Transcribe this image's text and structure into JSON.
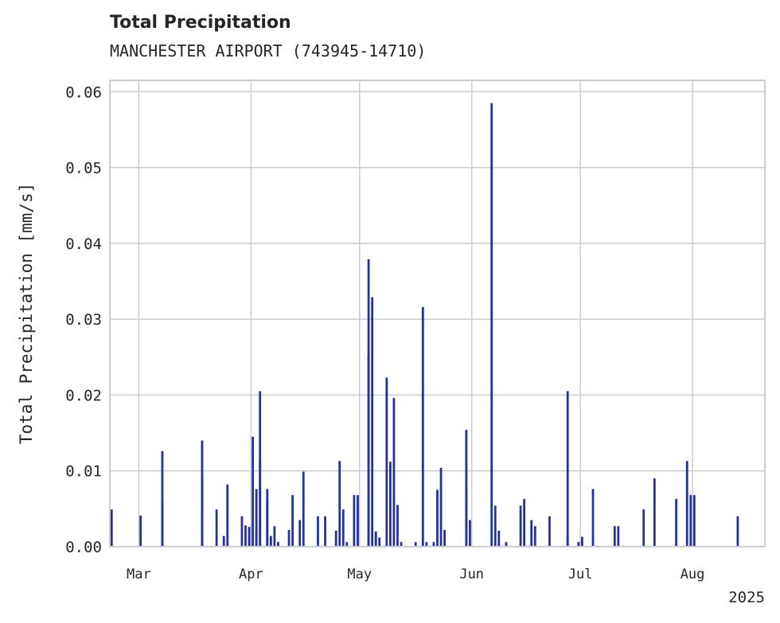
{
  "chart_data": {
    "type": "bar",
    "title": "Total Precipitation",
    "subtitle": "MANCHESTER AIRPORT (743945-14710)",
    "xlabel": "",
    "ylabel": "Total Precipitation [mm/s]",
    "x_axis": "date",
    "x_range": [
      "2025-02-21",
      "2025-08-21"
    ],
    "x_ticks": [
      {
        "date": "2025-03-01",
        "label": "Mar"
      },
      {
        "date": "2025-04-01",
        "label": "Apr"
      },
      {
        "date": "2025-05-01",
        "label": "May"
      },
      {
        "date": "2025-06-01",
        "label": "Jun"
      },
      {
        "date": "2025-07-01",
        "label": "Jul"
      },
      {
        "date": "2025-08-01",
        "label": "Aug"
      }
    ],
    "x_offset_label": "2025",
    "ylim": [
      0,
      0.0615
    ],
    "y_ticks": [
      0.0,
      0.01,
      0.02,
      0.03,
      0.04,
      0.05,
      0.06
    ],
    "y_tick_labels": [
      "0.00",
      "0.01",
      "0.02",
      "0.03",
      "0.04",
      "0.05",
      "0.06"
    ],
    "grid": true,
    "color": "#24339a",
    "series": [
      {
        "x": [
          "2025-02-21",
          "2025-03-01",
          "2025-03-07",
          "2025-03-07",
          "2025-03-18",
          "2025-03-18",
          "2025-03-22",
          "2025-03-24",
          "2025-03-25",
          "2025-03-29",
          "2025-03-30",
          "2025-03-31",
          "2025-04-01",
          "2025-04-02",
          "2025-04-02",
          "2025-04-03",
          "2025-04-03",
          "2025-04-05",
          "2025-04-05",
          "2025-04-06",
          "2025-04-07",
          "2025-04-08",
          "2025-04-11",
          "2025-04-12",
          "2025-04-14",
          "2025-04-15",
          "2025-04-19",
          "2025-04-21",
          "2025-04-24",
          "2025-04-25",
          "2025-04-26",
          "2025-04-27",
          "2025-04-29",
          "2025-04-30",
          "2025-05-03",
          "2025-05-03",
          "2025-05-04",
          "2025-05-05",
          "2025-05-05",
          "2025-05-06",
          "2025-05-08",
          "2025-05-09",
          "2025-05-10",
          "2025-05-11",
          "2025-05-12",
          "2025-05-16",
          "2025-05-18",
          "2025-05-19",
          "2025-05-21",
          "2025-05-22",
          "2025-05-23",
          "2025-05-24",
          "2025-05-30",
          "2025-05-30",
          "2025-05-31",
          "2025-06-06",
          "2025-06-07",
          "2025-06-08",
          "2025-06-10",
          "2025-06-14",
          "2025-06-15",
          "2025-06-17",
          "2025-06-18",
          "2025-06-22",
          "2025-06-27",
          "2025-06-27",
          "2025-06-30",
          "2025-07-01",
          "2025-07-04",
          "2025-07-10",
          "2025-07-11",
          "2025-07-18",
          "2025-07-21",
          "2025-07-27",
          "2025-07-30",
          "2025-07-31",
          "2025-08-01",
          "2025-08-13"
        ],
        "values": [
          0.0049,
          0.0041,
          0.0126,
          0.0062,
          0.014,
          0.0092,
          0.0049,
          0.0014,
          0.0082,
          0.004,
          0.0028,
          0.0026,
          0.0145,
          0.0076,
          0.0023,
          0.0205,
          0.0112,
          0.0063,
          0.0076,
          0.0014,
          0.0027,
          0.0006,
          0.0022,
          0.0068,
          0.0035,
          0.0099,
          0.004,
          0.004,
          0.0021,
          0.0113,
          0.0049,
          0.0006,
          0.0068,
          0.0068,
          0.0379,
          0.0252,
          0.0329,
          0.0016,
          0.002,
          0.0012,
          0.0223,
          0.0112,
          0.0196,
          0.0055,
          0.0006,
          0.0006,
          0.0316,
          0.0006,
          0.0006,
          0.0075,
          0.0104,
          0.0022,
          0.0154,
          0.0076,
          0.0035,
          0.0585,
          0.0054,
          0.0021,
          0.0006,
          0.0054,
          0.0063,
          0.0035,
          0.0027,
          0.004,
          0.0205,
          0.0013,
          0.0006,
          0.0013,
          0.0076,
          0.0027,
          0.0027,
          0.0049,
          0.009,
          0.0063,
          0.0113,
          0.0068,
          0.0068,
          0.004
        ]
      }
    ]
  }
}
